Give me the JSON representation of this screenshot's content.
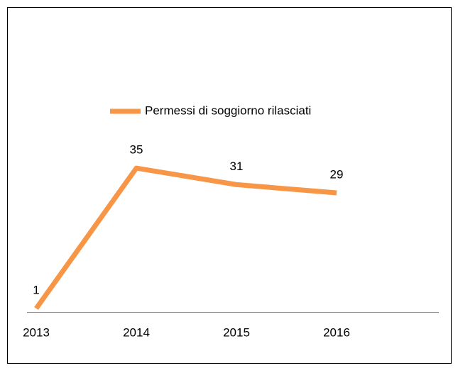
{
  "chart_data": {
    "type": "line",
    "categories": [
      "2013",
      "2014",
      "2015",
      "2016"
    ],
    "series": [
      {
        "name": "Permessi di soggiorno rilasciati",
        "color": "#f79646",
        "values": [
          1,
          35,
          31,
          29
        ]
      }
    ],
    "ylim": [
      0,
      40
    ],
    "legend": "top"
  }
}
